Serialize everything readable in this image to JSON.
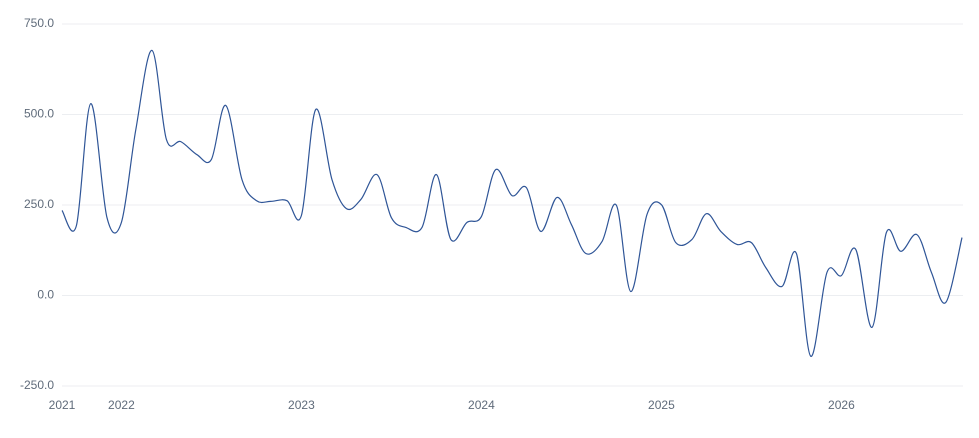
{
  "chart_data": {
    "type": "line",
    "x": [
      2021.67,
      2021.75,
      2021.83,
      2021.92,
      2022,
      2022.08,
      2022.17,
      2022.25,
      2022.33,
      2022.42,
      2022.5,
      2022.58,
      2022.67,
      2022.75,
      2022.83,
      2022.92,
      2023,
      2023.08,
      2023.17,
      2023.25,
      2023.33,
      2023.42,
      2023.5,
      2023.58,
      2023.67,
      2023.75,
      2023.83,
      2023.92,
      2024,
      2024.08,
      2024.17,
      2024.25,
      2024.33,
      2024.42,
      2024.5,
      2024.58,
      2024.67,
      2024.75,
      2024.83,
      2024.92,
      2025,
      2025.08,
      2025.17,
      2025.25,
      2025.33,
      2025.42,
      2025.5,
      2025.58,
      2025.67,
      2025.75,
      2025.83,
      2025.92,
      2026,
      2026.08,
      2026.17,
      2026.25,
      2026.33,
      2026.42,
      2026.5,
      2026.58,
      2026.67
    ],
    "series": [
      {
        "color": "#2f5597",
        "values": [
          235,
          193,
          530,
          215,
          202,
          458,
          677,
          431,
          425,
          389,
          376,
          525,
          320,
          262,
          260,
          262,
          221,
          514,
          320,
          240,
          265,
          334,
          215,
          188,
          188,
          334,
          155,
          202,
          218,
          348,
          276,
          298,
          177,
          271,
          196,
          116,
          149,
          249,
          11,
          224,
          251,
          146,
          155,
          226,
          177,
          141,
          146,
          77,
          25,
          116,
          -168,
          64,
          55,
          127,
          -88,
          174,
          122,
          168,
          64,
          -19,
          160
        ]
      }
    ],
    "xlim": [
      2021.67,
      2026.67
    ],
    "xticks": [
      {
        "value": 2021.67,
        "label": "2021"
      },
      2022,
      2023,
      2024,
      2025,
      2026
    ],
    "ylim": [
      -250,
      750
    ],
    "yticks": [
      {
        "value": -250,
        "label": "-250.0"
      },
      {
        "value": 0,
        "label": "0.0"
      },
      {
        "value": 250,
        "label": "250.0"
      },
      {
        "value": 500,
        "label": "500.0"
      },
      {
        "value": 750,
        "label": "750.0"
      }
    ],
    "grid": true
  }
}
